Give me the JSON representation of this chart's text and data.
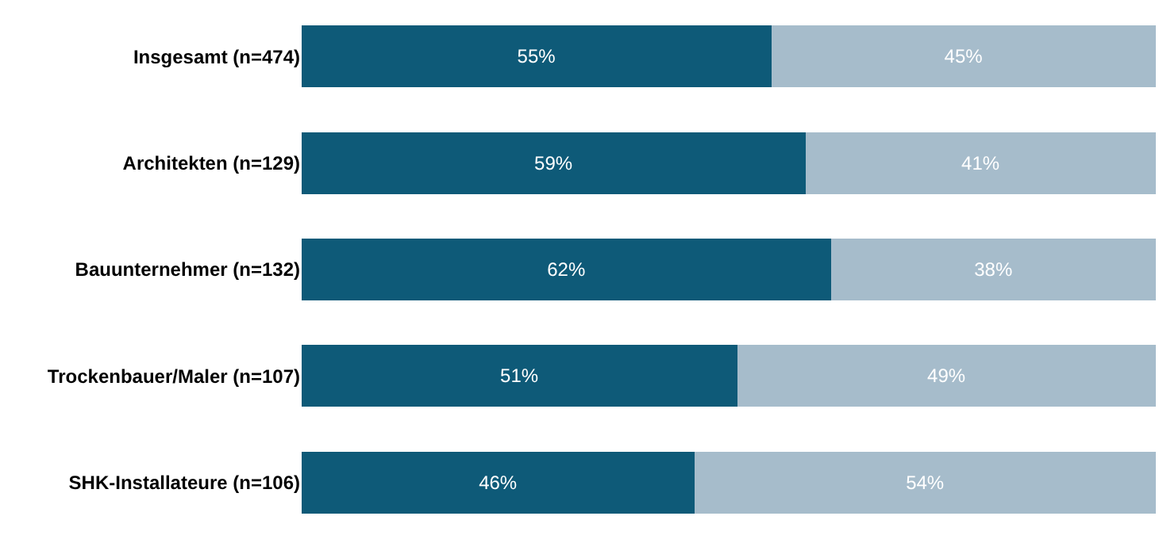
{
  "chart_data": {
    "type": "bar",
    "orientation": "horizontal",
    "stacked": true,
    "legend": false,
    "tick_labels": "y",
    "categories": [
      "Insgesamt (n=474)",
      "Architekten (n=129)",
      "Bauunternehmer (n=132)",
      "Trockenbauer/Maler (n=107)",
      "SHK-Installateure (n=106)"
    ],
    "series": [
      {
        "color": "#0e5a78",
        "values": [
          55,
          59,
          62,
          51,
          46
        ],
        "value_labels": [
          "55%",
          "59%",
          "62%",
          "51%",
          "46%"
        ]
      },
      {
        "color": "#a6bccb",
        "values": [
          45,
          41,
          38,
          49,
          54
        ],
        "value_labels": [
          "45%",
          "41%",
          "38%",
          "49%",
          "54%"
        ]
      }
    ]
  }
}
